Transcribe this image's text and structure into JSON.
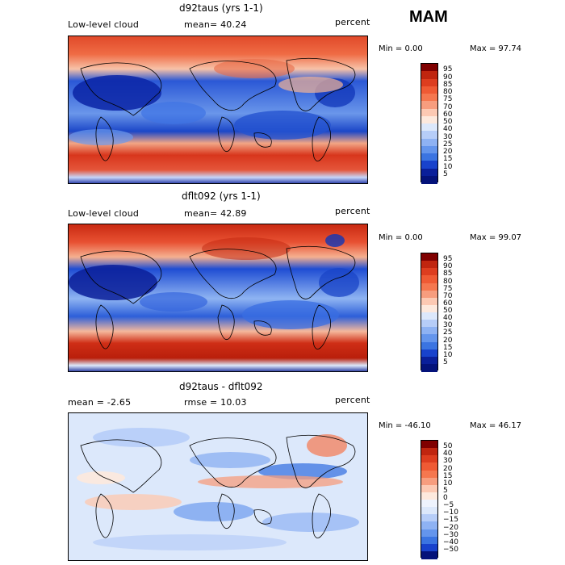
{
  "season": "MAM",
  "panels": [
    {
      "id": "top",
      "title": "d92taus (yrs 1-1)",
      "left_label": "Low-level cloud",
      "mean_label": "mean=  40.24",
      "right_label": "percent",
      "min_label": "Min =    0.00",
      "max_label": "Max =   97.74",
      "colorbar": {
        "labels": [
          "95",
          "90",
          "85",
          "80",
          "75",
          "70",
          "60",
          "50",
          "40",
          "30",
          "25",
          "20",
          "15",
          "10",
          "5"
        ],
        "colors": [
          "#800000",
          "#c0250f",
          "#dd3d1f",
          "#ef5a34",
          "#f5774f",
          "#f79d7e",
          "#fcc9b3",
          "#fde9dd",
          "#dce8fb",
          "#b6cdf8",
          "#8eb2f3",
          "#6495ec",
          "#3b74e1",
          "#1842cc",
          "#0a1f9a",
          "#04127a"
        ]
      }
    },
    {
      "id": "middle",
      "title": "dflt092 (yrs 1-1)",
      "left_label": "Low-level cloud",
      "mean_label": "mean=  42.89",
      "right_label": "percent",
      "min_label": "Min =    0.00",
      "max_label": "Max =   99.07",
      "colorbar": {
        "labels": [
          "95",
          "90",
          "85",
          "80",
          "75",
          "70",
          "60",
          "50",
          "40",
          "30",
          "25",
          "20",
          "15",
          "10",
          "5"
        ],
        "colors": [
          "#800000",
          "#c0250f",
          "#dd3d1f",
          "#ef5a34",
          "#f5774f",
          "#f79d7e",
          "#fcc9b3",
          "#fde9dd",
          "#dce8fb",
          "#b6cdf8",
          "#8eb2f3",
          "#6495ec",
          "#3b74e1",
          "#1842cc",
          "#0a1f9a",
          "#04127a"
        ]
      }
    },
    {
      "id": "bottom",
      "title": "d92taus - dflt092",
      "left_label": "mean =   -2.65",
      "mean_label": "rmse =   10.03",
      "right_label": "percent",
      "min_label": "Min =  -46.10",
      "max_label": "Max =   46.17",
      "colorbar": {
        "labels": [
          "50",
          "40",
          "30",
          "20",
          "15",
          "10",
          "5",
          "0",
          "−5",
          "−10",
          "−15",
          "−20",
          "−30",
          "−40",
          "−50"
        ],
        "colors": [
          "#800000",
          "#c0250f",
          "#dd3d1f",
          "#ef5a34",
          "#f5774f",
          "#f79d7e",
          "#fcc9b3",
          "#fde9dd",
          "#eef3fd",
          "#dce8fb",
          "#b6cdf8",
          "#8eb2f3",
          "#6495ec",
          "#3b74e1",
          "#1842cc",
          "#04127a"
        ]
      }
    }
  ],
  "chart_data": [
    {
      "type": "heatmap",
      "title": "d92taus (yrs 1-1)",
      "quantity": "Low-level cloud",
      "units": "percent",
      "mean": 40.24,
      "min": 0.0,
      "max": 97.74,
      "contour_levels": [
        5,
        10,
        15,
        20,
        25,
        30,
        40,
        50,
        60,
        70,
        75,
        80,
        85,
        90,
        95
      ]
    },
    {
      "type": "heatmap",
      "title": "dflt092 (yrs 1-1)",
      "quantity": "Low-level cloud",
      "units": "percent",
      "mean": 42.89,
      "min": 0.0,
      "max": 99.07,
      "contour_levels": [
        5,
        10,
        15,
        20,
        25,
        30,
        40,
        50,
        60,
        70,
        75,
        80,
        85,
        90,
        95
      ]
    },
    {
      "type": "heatmap",
      "title": "d92taus - dflt092",
      "units": "percent",
      "mean": -2.65,
      "rmse": 10.03,
      "min": -46.1,
      "max": 46.17,
      "contour_levels": [
        -50,
        -40,
        -30,
        -20,
        -15,
        -10,
        -5,
        0,
        5,
        10,
        15,
        20,
        30,
        40,
        50
      ]
    }
  ]
}
